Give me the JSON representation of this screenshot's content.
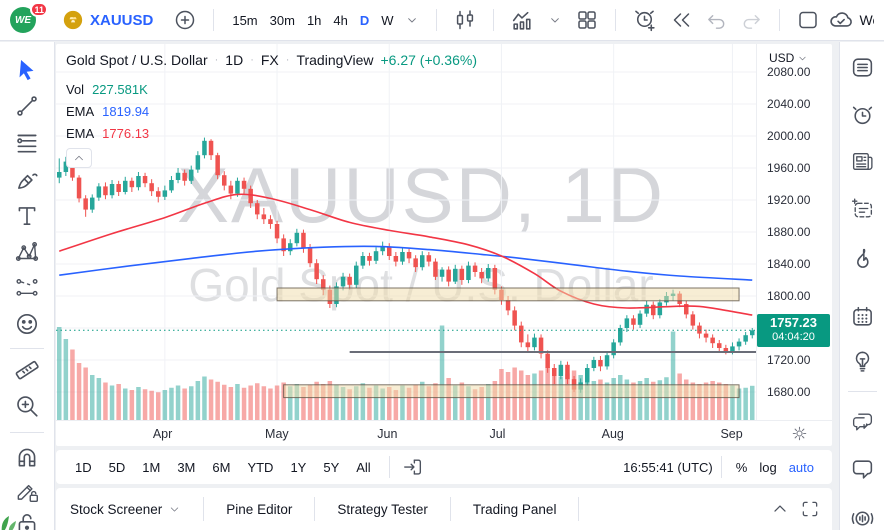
{
  "top_toolbar": {
    "logo_text": "WE",
    "notification_count": "11",
    "symbol": "XAUUSD",
    "intervals": [
      "15m",
      "30m",
      "1h",
      "4h",
      "D",
      "W"
    ],
    "active_interval": "D",
    "account_label": "Wealthy Educ...",
    "icon_names": [
      "symbol-search-plus",
      "candles-style",
      "indicators",
      "layouts-grid",
      "alert-plus",
      "bar-replay",
      "undo",
      "redo",
      "save-layout",
      "cloud-sync-check"
    ]
  },
  "left_toolbar": {
    "active_tool": "cursor",
    "tools": [
      "cursor",
      "trend-line",
      "fib-retracement",
      "brush",
      "text",
      "xabcd-pattern",
      "forecast",
      "emoji",
      "ruler",
      "zoom-in",
      "magnet",
      "drawing-lock",
      "lock-all"
    ]
  },
  "right_sidebar": {
    "icons": [
      "watchlist",
      "alerts",
      "news",
      "data-window",
      "hotlists",
      "calendar",
      "ideas",
      "public-chats",
      "private-chat",
      "streams"
    ]
  },
  "chart": {
    "title": "Gold Spot / U.S. Dollar",
    "sep": "·",
    "interval": "1D",
    "market": "FX",
    "provider": "TradingView",
    "change": "+6.27 (+0.36%)",
    "legend": {
      "vol_label": "Vol",
      "vol_value": "227.581K",
      "ema_blue_label": "EMA",
      "ema_blue_value": "1819.94",
      "ema_red_label": "EMA",
      "ema_red_value": "1776.13"
    },
    "watermark_line1": "XAUUSD, 1D",
    "watermark_line2": "Gold Spot / U.S. Dollar",
    "price_label": {
      "price": "1757.23",
      "countdown": "04:04:20"
    },
    "axis_currency": "USD"
  },
  "chart_data": {
    "type": "candlestick",
    "symbol": "XAUUSD",
    "interval": "1D",
    "title": "XAUUSD, 1D  Gold Spot / U.S. Dollar",
    "x_ticks": [
      "Apr",
      "May",
      "Jun",
      "Jul",
      "Aug",
      "Sep"
    ],
    "x_tick_candle_indices": [
      16,
      33,
      50,
      67,
      84,
      102
    ],
    "y_ticks": [
      2080,
      2040,
      2000,
      1960,
      1920,
      1880,
      1840,
      1800,
      1760,
      1720,
      1680
    ],
    "y_axis_range": [
      1645,
      2115
    ],
    "grid": true,
    "current_price": 1757.23,
    "up_color": "#26a69a",
    "down_color": "#ef5350",
    "candles_ohlc": [
      [
        1948,
        1972,
        1941,
        1955
      ],
      [
        1955,
        1974,
        1950,
        1968
      ],
      [
        1968,
        1971,
        1944,
        1948
      ],
      [
        1948,
        1951,
        1917,
        1922
      ],
      [
        1922,
        1926,
        1899,
        1908
      ],
      [
        1908,
        1927,
        1904,
        1923
      ],
      [
        1923,
        1941,
        1919,
        1937
      ],
      [
        1937,
        1942,
        1921,
        1926
      ],
      [
        1926,
        1945,
        1922,
        1940
      ],
      [
        1940,
        1944,
        1925,
        1930
      ],
      [
        1930,
        1949,
        1927,
        1944
      ],
      [
        1944,
        1948,
        1930,
        1936
      ],
      [
        1936,
        1955,
        1932,
        1950
      ],
      [
        1950,
        1954,
        1936,
        1941
      ],
      [
        1941,
        1946,
        1925,
        1931
      ],
      [
        1931,
        1936,
        1917,
        1924
      ],
      [
        1924,
        1938,
        1920,
        1932
      ],
      [
        1932,
        1950,
        1929,
        1945
      ],
      [
        1945,
        1960,
        1941,
        1954
      ],
      [
        1954,
        1958,
        1938,
        1944
      ],
      [
        1944,
        1963,
        1940,
        1958
      ],
      [
        1958,
        1981,
        1954,
        1976
      ],
      [
        1976,
        1998,
        1972,
        1994
      ],
      [
        1994,
        1996,
        1970,
        1976
      ],
      [
        1976,
        1979,
        1946,
        1951
      ],
      [
        1951,
        1956,
        1932,
        1938
      ],
      [
        1938,
        1944,
        1921,
        1928
      ],
      [
        1928,
        1948,
        1924,
        1944
      ],
      [
        1944,
        1948,
        1928,
        1934
      ],
      [
        1934,
        1938,
        1910,
        1916
      ],
      [
        1916,
        1920,
        1896,
        1902
      ],
      [
        1902,
        1910,
        1890,
        1896
      ],
      [
        1896,
        1901,
        1884,
        1890
      ],
      [
        1890,
        1894,
        1866,
        1872
      ],
      [
        1872,
        1877,
        1850,
        1856
      ],
      [
        1856,
        1871,
        1851,
        1866
      ],
      [
        1866,
        1884,
        1862,
        1879
      ],
      [
        1879,
        1883,
        1854,
        1860
      ],
      [
        1860,
        1865,
        1836,
        1841
      ],
      [
        1841,
        1846,
        1815,
        1821
      ],
      [
        1821,
        1826,
        1801,
        1808
      ],
      [
        1808,
        1813,
        1785,
        1790
      ],
      [
        1790,
        1817,
        1786,
        1812
      ],
      [
        1812,
        1829,
        1807,
        1824
      ],
      [
        1824,
        1828,
        1808,
        1814
      ],
      [
        1814,
        1843,
        1810,
        1838
      ],
      [
        1838,
        1855,
        1834,
        1850
      ],
      [
        1850,
        1854,
        1838,
        1844
      ],
      [
        1844,
        1861,
        1840,
        1856
      ],
      [
        1856,
        1868,
        1851,
        1862
      ],
      [
        1862,
        1866,
        1845,
        1850
      ],
      [
        1850,
        1855,
        1837,
        1843
      ],
      [
        1843,
        1860,
        1839,
        1855
      ],
      [
        1855,
        1859,
        1841,
        1847
      ],
      [
        1847,
        1851,
        1830,
        1836
      ],
      [
        1836,
        1856,
        1832,
        1851
      ],
      [
        1851,
        1855,
        1837,
        1843
      ],
      [
        1843,
        1847,
        1820,
        1824
      ],
      [
        1824,
        1836,
        1818,
        1833
      ],
      [
        1833,
        1837,
        1812,
        1818
      ],
      [
        1818,
        1839,
        1815,
        1834
      ],
      [
        1834,
        1838,
        1814,
        1820
      ],
      [
        1820,
        1843,
        1816,
        1838
      ],
      [
        1838,
        1842,
        1824,
        1830
      ],
      [
        1830,
        1835,
        1816,
        1822
      ],
      [
        1822,
        1840,
        1818,
        1835
      ],
      [
        1835,
        1839,
        1802,
        1808
      ],
      [
        1808,
        1812,
        1789,
        1795
      ],
      [
        1795,
        1800,
        1776,
        1782
      ],
      [
        1782,
        1787,
        1757,
        1763
      ],
      [
        1763,
        1768,
        1736,
        1742
      ],
      [
        1742,
        1752,
        1730,
        1736
      ],
      [
        1736,
        1753,
        1732,
        1748
      ],
      [
        1748,
        1752,
        1722,
        1728
      ],
      [
        1728,
        1732,
        1704,
        1710
      ],
      [
        1710,
        1715,
        1690,
        1700
      ],
      [
        1700,
        1719,
        1696,
        1714
      ],
      [
        1714,
        1718,
        1690,
        1696
      ],
      [
        1696,
        1700,
        1680,
        1683
      ],
      [
        1683,
        1697,
        1679,
        1692
      ],
      [
        1692,
        1715,
        1688,
        1710
      ],
      [
        1710,
        1724,
        1706,
        1720
      ],
      [
        1720,
        1725,
        1706,
        1712
      ],
      [
        1712,
        1730,
        1708,
        1726
      ],
      [
        1726,
        1746,
        1722,
        1742
      ],
      [
        1742,
        1764,
        1738,
        1760
      ],
      [
        1760,
        1776,
        1755,
        1772
      ],
      [
        1772,
        1776,
        1758,
        1764
      ],
      [
        1764,
        1782,
        1760,
        1778
      ],
      [
        1778,
        1794,
        1774,
        1789
      ],
      [
        1789,
        1793,
        1771,
        1776
      ],
      [
        1776,
        1796,
        1772,
        1792
      ],
      [
        1792,
        1805,
        1788,
        1800
      ],
      [
        1800,
        1808,
        1794,
        1803
      ],
      [
        1803,
        1806,
        1786,
        1790
      ],
      [
        1790,
        1794,
        1772,
        1777
      ],
      [
        1777,
        1781,
        1758,
        1763
      ],
      [
        1763,
        1767,
        1747,
        1753
      ],
      [
        1753,
        1758,
        1742,
        1748
      ],
      [
        1748,
        1752,
        1735,
        1741
      ],
      [
        1741,
        1745,
        1729,
        1735
      ],
      [
        1735,
        1739,
        1727,
        1731
      ],
      [
        1731,
        1742,
        1727,
        1737
      ],
      [
        1737,
        1747,
        1732,
        1743
      ],
      [
        1743,
        1755,
        1739,
        1751
      ],
      [
        1751,
        1760,
        1747,
        1757
      ]
    ],
    "volumes_k": [
      620,
      540,
      470,
      380,
      350,
      300,
      280,
      250,
      230,
      240,
      210,
      200,
      220,
      205,
      195,
      185,
      200,
      215,
      230,
      210,
      225,
      260,
      290,
      270,
      255,
      235,
      220,
      240,
      215,
      230,
      245,
      225,
      210,
      230,
      250,
      225,
      240,
      220,
      235,
      255,
      240,
      260,
      235,
      220,
      205,
      225,
      245,
      215,
      230,
      210,
      220,
      200,
      230,
      215,
      235,
      255,
      225,
      245,
      630,
      280,
      230,
      250,
      225,
      205,
      220,
      240,
      260,
      340,
      320,
      350,
      330,
      300,
      310,
      330,
      350,
      320,
      290,
      310,
      330,
      300,
      280,
      260,
      270,
      250,
      280,
      300,
      270,
      250,
      260,
      280,
      255,
      265,
      285,
      590,
      310,
      270,
      250,
      240,
      250,
      260,
      250,
      240,
      230,
      210,
      215,
      228
    ],
    "ema_fast": {
      "name": "EMA (red)",
      "color": "#f23645",
      "last_value": 1776.13,
      "points": [
        [
          0,
          1856
        ],
        [
          8,
          1878
        ],
        [
          16,
          1898
        ],
        [
          22,
          1916
        ],
        [
          27,
          1927
        ],
        [
          32,
          1922
        ],
        [
          38,
          1908
        ],
        [
          44,
          1892
        ],
        [
          50,
          1882
        ],
        [
          56,
          1874
        ],
        [
          62,
          1864
        ],
        [
          67,
          1850
        ],
        [
          72,
          1828
        ],
        [
          76,
          1806
        ],
        [
          81,
          1790
        ],
        [
          86,
          1785
        ],
        [
          93,
          1787
        ],
        [
          97,
          1787
        ],
        [
          101,
          1782
        ],
        [
          105,
          1776.13
        ]
      ]
    },
    "ema_slow": {
      "name": "EMA (blue)",
      "color": "#2962ff",
      "last_value": 1819.94,
      "points": [
        [
          0,
          1826
        ],
        [
          10,
          1837
        ],
        [
          20,
          1847
        ],
        [
          30,
          1856
        ],
        [
          40,
          1861
        ],
        [
          48,
          1862
        ],
        [
          56,
          1858
        ],
        [
          64,
          1852
        ],
        [
          70,
          1847
        ],
        [
          78,
          1839
        ],
        [
          86,
          1831
        ],
        [
          94,
          1825
        ],
        [
          105,
          1819.94
        ]
      ]
    },
    "zones": [
      {
        "top": 1810,
        "bottom": 1794,
        "from_index": 33,
        "to_index": 103,
        "fill": "#f0dca9",
        "stroke": "#5d5345"
      },
      {
        "top": 1689,
        "bottom": 1673,
        "from_index": 34,
        "to_index": 103,
        "fill": "#f0dca9",
        "stroke": "#5d5345"
      }
    ],
    "hline": {
      "price": 1730,
      "from_index": 44,
      "color": "#6a6d78"
    }
  },
  "timeframe_bar": {
    "ranges": [
      "1D",
      "5D",
      "1M",
      "3M",
      "6M",
      "YTD",
      "1Y",
      "5Y",
      "All"
    ],
    "clock": "16:55:41 (UTC)",
    "percent_label": "%",
    "log_label": "log",
    "auto_label": "auto",
    "active_scale": "auto"
  },
  "bottom_panel": {
    "tabs": [
      "Stock Screener",
      "Pine Editor",
      "Strategy Tester",
      "Trading Panel"
    ]
  },
  "colors": {
    "accent": "#2962ff",
    "positive": "#089981",
    "up": "#26a69a",
    "down": "#ef5350",
    "ema_red": "#f23645",
    "ema_blue": "#2962ff",
    "price_label_bg": "#089981",
    "badge_red": "#f23645",
    "logo_green": "#23a35c",
    "gold": "#d4a10e"
  }
}
